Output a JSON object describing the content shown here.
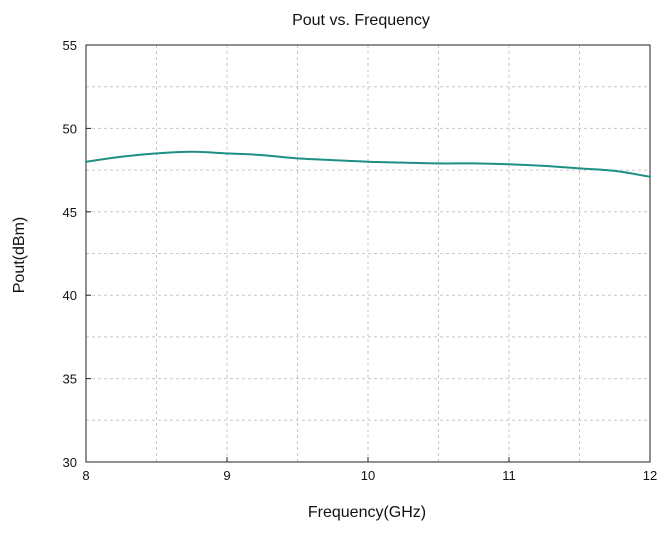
{
  "chart_data": {
    "type": "line",
    "title": "Pout vs. Frequency",
    "xlabel": "Frequency(GHz)",
    "ylabel": "Pout(dBm)",
    "xlim": [
      8,
      12
    ],
    "ylim": [
      30,
      55
    ],
    "x_ticks": [
      8,
      9,
      10,
      11,
      12
    ],
    "y_ticks": [
      30,
      35,
      40,
      45,
      50,
      55
    ],
    "x_tick_labels": [
      "8",
      "9",
      "10",
      "11",
      "12"
    ],
    "y_tick_labels": [
      "30",
      "35",
      "40",
      "45",
      "50",
      "55"
    ],
    "grid": "dashed, major and minor",
    "legend": "none",
    "series": [
      {
        "color": "#1f8f84",
        "x": [
          8.0,
          8.25,
          8.5,
          8.75,
          9.0,
          9.25,
          9.5,
          9.75,
          10.0,
          10.25,
          10.5,
          10.75,
          11.0,
          11.25,
          11.5,
          11.75,
          12.0
        ],
        "y": [
          48.0,
          48.3,
          48.5,
          48.6,
          48.5,
          48.4,
          48.2,
          48.1,
          48.0,
          47.95,
          47.9,
          47.9,
          47.85,
          47.75,
          47.6,
          47.45,
          47.1
        ]
      }
    ]
  }
}
